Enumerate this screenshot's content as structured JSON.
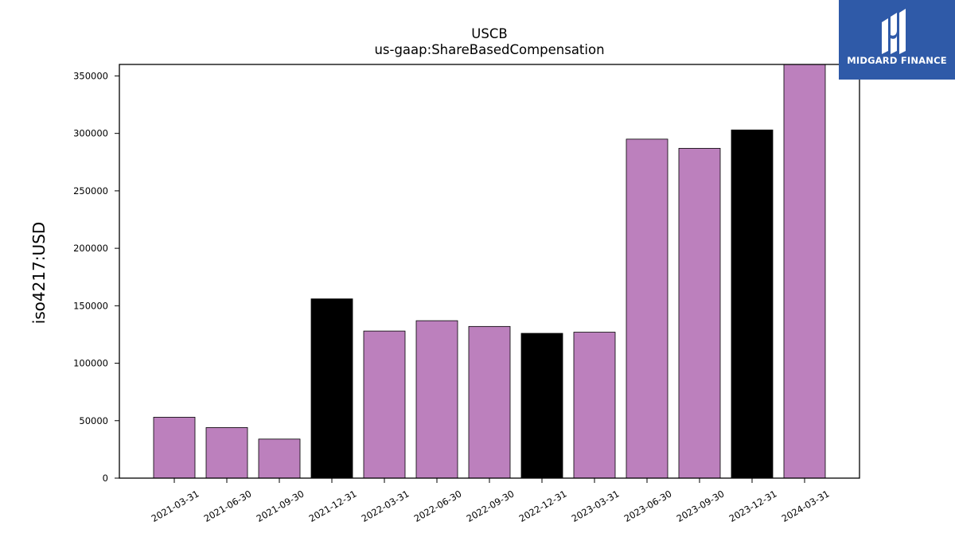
{
  "brand": {
    "name": "MIDGARD FINANCE",
    "logo_icon": "midgard-m-icon",
    "background_color": "#2f5aa8",
    "text_color": "#ffffff"
  },
  "chart_data": {
    "type": "bar",
    "title": "USCB",
    "subtitle": "us-gaap:ShareBasedCompensation",
    "xlabel": "",
    "ylabel": "iso4217:USD",
    "categories": [
      "2021-03-31",
      "2021-06-30",
      "2021-09-30",
      "2021-12-31",
      "2022-03-31",
      "2022-06-30",
      "2022-09-30",
      "2022-12-31",
      "2023-03-31",
      "2023-06-30",
      "2023-09-30",
      "2023-12-31",
      "2024-03-31"
    ],
    "values": [
      53000,
      44000,
      34000,
      156000,
      128000,
      137000,
      132000,
      126000,
      127000,
      295000,
      287000,
      303000,
      360000
    ],
    "bar_colors": [
      "#bc80bd",
      "#bc80bd",
      "#bc80bd",
      "#000000",
      "#bc80bd",
      "#bc80bd",
      "#bc80bd",
      "#000000",
      "#bc80bd",
      "#bc80bd",
      "#bc80bd",
      "#000000",
      "#bc80bd"
    ],
    "ylim": [
      0,
      360000
    ],
    "yticks": [
      0,
      50000,
      100000,
      150000,
      200000,
      250000,
      300000,
      350000
    ],
    "ytick_labels": [
      "0",
      "50000",
      "100000",
      "150000",
      "200000",
      "250000",
      "300000",
      "350000"
    ],
    "grid": false,
    "legend": "none"
  }
}
